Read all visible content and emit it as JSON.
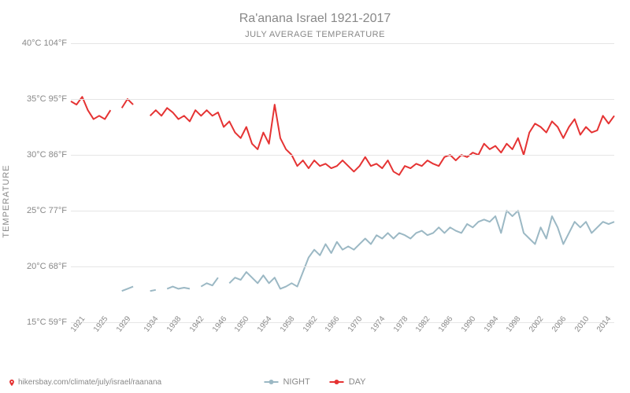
{
  "title": "Ra'anana Israel 1921-2017",
  "subtitle": "JULY AVERAGE TEMPERATURE",
  "y_axis_label": "TEMPERATURE",
  "source_url": "hikersbay.com/climate/july/israel/raanana",
  "chart": {
    "type": "line",
    "background_color": "#ffffff",
    "grid_color": "#e5e5e5",
    "text_color": "#888888",
    "title_fontsize": 16,
    "subtitle_fontsize": 11,
    "tick_fontsize": 11,
    "x_tick_fontsize": 10,
    "xlim": [
      1921,
      2017
    ],
    "ylim": [
      15,
      40
    ],
    "y_ticks": [
      {
        "c": 15,
        "f": 59,
        "label": "15°C 59°F"
      },
      {
        "c": 20,
        "f": 68,
        "label": "20°C 68°F"
      },
      {
        "c": 25,
        "f": 77,
        "label": "25°C 77°F"
      },
      {
        "c": 30,
        "f": 86,
        "label": "30°C 86°F"
      },
      {
        "c": 35,
        "f": 95,
        "label": "35°C 95°F"
      },
      {
        "c": 40,
        "f": 104,
        "label": "40°C 104°F"
      }
    ],
    "x_ticks": [
      1921,
      1925,
      1929,
      1934,
      1938,
      1942,
      1946,
      1950,
      1954,
      1958,
      1962,
      1966,
      1970,
      1974,
      1978,
      1982,
      1986,
      1990,
      1994,
      1998,
      2002,
      2006,
      2010,
      2014
    ],
    "legend_position": "bottom-center",
    "series": [
      {
        "name": "NIGHT",
        "color": "#9bb8c4",
        "line_width": 2,
        "marker": "circle",
        "marker_size": 5,
        "segments": [
          [
            [
              1930,
              17.8
            ],
            [
              1931,
              18.0
            ],
            [
              1932,
              18.2
            ]
          ],
          [
            [
              1935,
              17.8
            ],
            [
              1936,
              17.9
            ]
          ],
          [
            [
              1938,
              18.0
            ],
            [
              1939,
              18.2
            ],
            [
              1940,
              18.0
            ],
            [
              1941,
              18.1
            ],
            [
              1942,
              18.0
            ]
          ],
          [
            [
              1944,
              18.2
            ],
            [
              1945,
              18.5
            ],
            [
              1946,
              18.3
            ],
            [
              1947,
              19.0
            ]
          ],
          [
            [
              1949,
              18.5
            ],
            [
              1950,
              19.0
            ],
            [
              1951,
              18.8
            ],
            [
              1952,
              19.5
            ],
            [
              1953,
              19.0
            ],
            [
              1954,
              18.5
            ],
            [
              1955,
              19.2
            ],
            [
              1956,
              18.5
            ],
            [
              1957,
              19.0
            ],
            [
              1958,
              18.0
            ],
            [
              1959,
              18.2
            ],
            [
              1960,
              18.5
            ],
            [
              1961,
              18.2
            ],
            [
              1962,
              19.5
            ],
            [
              1963,
              20.8
            ],
            [
              1964,
              21.5
            ],
            [
              1965,
              21.0
            ],
            [
              1966,
              22.0
            ],
            [
              1967,
              21.2
            ],
            [
              1968,
              22.2
            ],
            [
              1969,
              21.5
            ],
            [
              1970,
              21.8
            ],
            [
              1971,
              21.5
            ],
            [
              1972,
              22.0
            ],
            [
              1973,
              22.5
            ],
            [
              1974,
              22.0
            ],
            [
              1975,
              22.8
            ],
            [
              1976,
              22.5
            ],
            [
              1977,
              23.0
            ],
            [
              1978,
              22.5
            ],
            [
              1979,
              23.0
            ],
            [
              1980,
              22.8
            ],
            [
              1981,
              22.5
            ],
            [
              1982,
              23.0
            ],
            [
              1983,
              23.2
            ],
            [
              1984,
              22.8
            ],
            [
              1985,
              23.0
            ],
            [
              1986,
              23.5
            ],
            [
              1987,
              23.0
            ],
            [
              1988,
              23.5
            ],
            [
              1989,
              23.2
            ],
            [
              1990,
              23.0
            ],
            [
              1991,
              23.8
            ],
            [
              1992,
              23.5
            ],
            [
              1993,
              24.0
            ],
            [
              1994,
              24.2
            ],
            [
              1995,
              24.0
            ],
            [
              1996,
              24.5
            ],
            [
              1997,
              23.0
            ],
            [
              1998,
              25.0
            ],
            [
              1999,
              24.5
            ],
            [
              2000,
              25.0
            ],
            [
              2001,
              23.0
            ],
            [
              2002,
              22.5
            ],
            [
              2003,
              22.0
            ],
            [
              2004,
              23.5
            ],
            [
              2005,
              22.5
            ],
            [
              2006,
              24.5
            ],
            [
              2007,
              23.5
            ],
            [
              2008,
              22.0
            ],
            [
              2009,
              23.0
            ],
            [
              2010,
              24.0
            ],
            [
              2011,
              23.5
            ],
            [
              2012,
              24.0
            ],
            [
              2013,
              23.0
            ],
            [
              2014,
              23.5
            ],
            [
              2015,
              24.0
            ],
            [
              2016,
              23.8
            ],
            [
              2017,
              24.0
            ]
          ]
        ]
      },
      {
        "name": "DAY",
        "color": "#e53333",
        "line_width": 2,
        "marker": "circle",
        "marker_size": 5,
        "segments": [
          [
            [
              1921,
              34.8
            ],
            [
              1922,
              34.5
            ],
            [
              1923,
              35.2
            ],
            [
              1924,
              34.0
            ],
            [
              1925,
              33.2
            ],
            [
              1926,
              33.5
            ],
            [
              1927,
              33.2
            ],
            [
              1928,
              34.0
            ]
          ],
          [
            [
              1930,
              34.2
            ],
            [
              1931,
              35.0
            ],
            [
              1932,
              34.5
            ]
          ],
          [
            [
              1935,
              33.5
            ],
            [
              1936,
              34.0
            ],
            [
              1937,
              33.5
            ],
            [
              1938,
              34.2
            ],
            [
              1939,
              33.8
            ],
            [
              1940,
              33.2
            ],
            [
              1941,
              33.5
            ],
            [
              1942,
              33.0
            ],
            [
              1943,
              34.0
            ],
            [
              1944,
              33.5
            ],
            [
              1945,
              34.0
            ],
            [
              1946,
              33.5
            ],
            [
              1947,
              33.8
            ],
            [
              1948,
              32.5
            ],
            [
              1949,
              33.0
            ],
            [
              1950,
              32.0
            ],
            [
              1951,
              31.5
            ],
            [
              1952,
              32.5
            ],
            [
              1953,
              31.0
            ],
            [
              1954,
              30.5
            ],
            [
              1955,
              32.0
            ],
            [
              1956,
              31.0
            ],
            [
              1957,
              34.5
            ],
            [
              1958,
              31.5
            ],
            [
              1959,
              30.5
            ],
            [
              1960,
              30.0
            ],
            [
              1961,
              29.0
            ],
            [
              1962,
              29.5
            ],
            [
              1963,
              28.8
            ],
            [
              1964,
              29.5
            ],
            [
              1965,
              29.0
            ],
            [
              1966,
              29.2
            ],
            [
              1967,
              28.8
            ],
            [
              1968,
              29.0
            ],
            [
              1969,
              29.5
            ],
            [
              1970,
              29.0
            ],
            [
              1971,
              28.5
            ],
            [
              1972,
              29.0
            ],
            [
              1973,
              29.8
            ],
            [
              1974,
              29.0
            ],
            [
              1975,
              29.2
            ],
            [
              1976,
              28.8
            ],
            [
              1977,
              29.5
            ],
            [
              1978,
              28.5
            ],
            [
              1979,
              28.2
            ],
            [
              1980,
              29.0
            ],
            [
              1981,
              28.8
            ],
            [
              1982,
              29.2
            ],
            [
              1983,
              29.0
            ],
            [
              1984,
              29.5
            ],
            [
              1985,
              29.2
            ],
            [
              1986,
              29.0
            ],
            [
              1987,
              29.8
            ],
            [
              1988,
              30.0
            ],
            [
              1989,
              29.5
            ],
            [
              1990,
              30.0
            ],
            [
              1991,
              29.8
            ],
            [
              1992,
              30.2
            ],
            [
              1993,
              30.0
            ],
            [
              1994,
              31.0
            ],
            [
              1995,
              30.5
            ],
            [
              1996,
              30.8
            ],
            [
              1997,
              30.2
            ],
            [
              1998,
              31.0
            ],
            [
              1999,
              30.5
            ],
            [
              2000,
              31.5
            ],
            [
              2001,
              30.0
            ],
            [
              2002,
              32.0
            ],
            [
              2003,
              32.8
            ],
            [
              2004,
              32.5
            ],
            [
              2005,
              32.0
            ],
            [
              2006,
              33.0
            ],
            [
              2007,
              32.5
            ],
            [
              2008,
              31.5
            ],
            [
              2009,
              32.5
            ],
            [
              2010,
              33.2
            ],
            [
              2011,
              31.8
            ],
            [
              2012,
              32.5
            ],
            [
              2013,
              32.0
            ],
            [
              2014,
              32.2
            ],
            [
              2015,
              33.5
            ],
            [
              2016,
              32.8
            ],
            [
              2017,
              33.5
            ]
          ]
        ]
      }
    ]
  }
}
